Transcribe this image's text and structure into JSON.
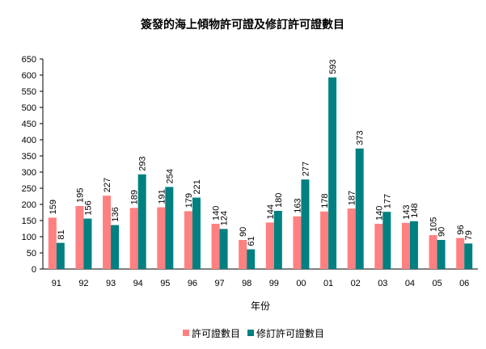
{
  "chart_data": {
    "type": "bar",
    "title": "簽發的海上傾物許可證及修訂許可證數目",
    "xlabel": "年份",
    "ylabel": "",
    "ylim": [
      0,
      650
    ],
    "yticks": [
      0,
      50,
      100,
      150,
      200,
      250,
      300,
      350,
      400,
      450,
      500,
      550,
      600,
      650
    ],
    "grid": false,
    "legend_position": "bottom",
    "categories": [
      "91",
      "92",
      "93",
      "94",
      "95",
      "96",
      "97",
      "98",
      "99",
      "00",
      "01",
      "02",
      "03",
      "04",
      "05",
      "06"
    ],
    "series": [
      {
        "name": "許可證數目",
        "color": "#FF8080",
        "values": [
          159,
          195,
          227,
          189,
          191,
          179,
          140,
          90,
          144,
          163,
          178,
          187,
          140,
          143,
          105,
          96
        ]
      },
      {
        "name": "修訂許可證數目",
        "color": "#008080",
        "values": [
          81,
          156,
          136,
          293,
          254,
          221,
          124,
          61,
          180,
          277,
          593,
          373,
          177,
          148,
          90,
          79
        ]
      }
    ]
  }
}
